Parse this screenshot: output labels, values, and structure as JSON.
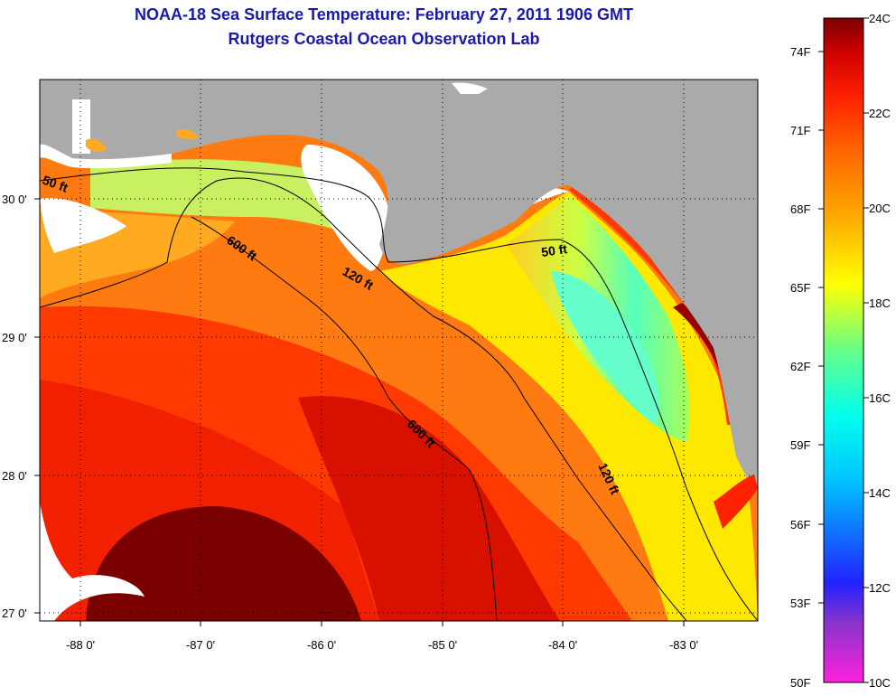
{
  "title": {
    "line1": "NOAA-18 Sea Surface Temperature:  February 27, 2011 1906 GMT",
    "line2": "Rutgers Coastal Ocean Observation Lab"
  },
  "map": {
    "lon_labels": [
      "-88 0'",
      "-87 0'",
      "-86 0'",
      "-85 0'",
      "-84 0'",
      "-83 0'"
    ],
    "lat_labels": [
      "30 0'",
      "29 0'",
      "28 0'",
      "27 0'"
    ],
    "land_color": "#aaaaaa",
    "cloud_color": "#ffffff",
    "grid": "dotted"
  },
  "contours": [
    {
      "label": "50 ft"
    },
    {
      "label": "120 ft"
    },
    {
      "label": "600 ft"
    },
    {
      "label": "50 ft"
    },
    {
      "label": "120 ft"
    },
    {
      "label": "600 ft"
    }
  ],
  "colorbar": {
    "f_labels": [
      "74F",
      "71F",
      "68F",
      "65F",
      "62F",
      "59F",
      "56F",
      "53F",
      "50F"
    ],
    "c_labels": [
      "24C",
      "22C",
      "20C",
      "18C",
      "16C",
      "14C",
      "12C",
      "10C"
    ],
    "stops": [
      "#ff22dd",
      "#8833cc",
      "#2222ff",
      "#00c0ff",
      "#00ffee",
      "#66ff88",
      "#ffff00",
      "#ffaa00",
      "#ff6600",
      "#ff2200",
      "#cc0000",
      "#7a0000"
    ]
  }
}
